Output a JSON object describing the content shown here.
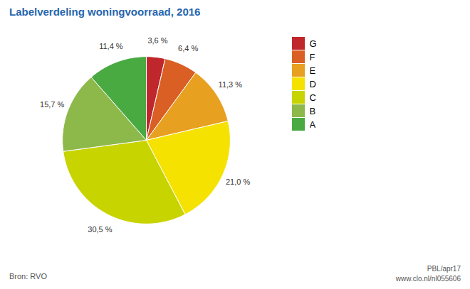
{
  "chart_data": {
    "type": "pie",
    "title": "Labelverdeling woningvoorraad, 2016",
    "categories": [
      "G",
      "F",
      "E",
      "D",
      "C",
      "B",
      "A"
    ],
    "values": [
      3.6,
      6.4,
      11.3,
      21.0,
      30.5,
      15.7,
      11.4
    ],
    "value_labels": [
      "3,6 %",
      "6,4 %",
      "11,3 %",
      "21,0 %",
      "30,5 %",
      "15,7 %",
      "11,4 %"
    ],
    "colors": [
      "#c0272d",
      "#d95f25",
      "#e8a020",
      "#f5e200",
      "#c8d400",
      "#8db84a",
      "#4aaa42"
    ],
    "data_labels": true,
    "legend": "right",
    "annotations": [
      "Bron: RVO",
      "PBL/apr17",
      "www.clo.nl/nl055606"
    ]
  }
}
